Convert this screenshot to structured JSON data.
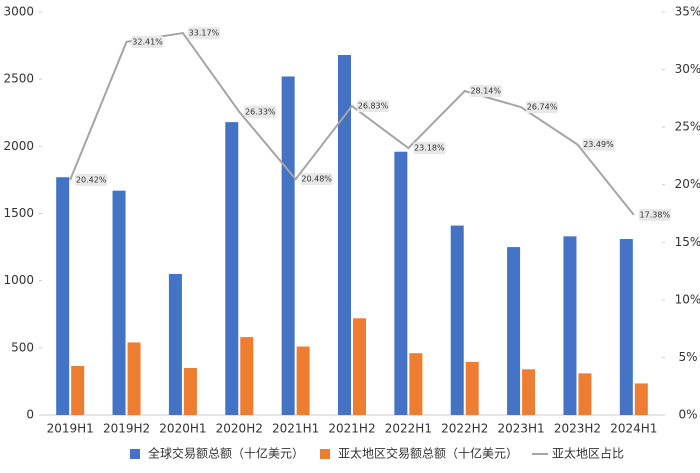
{
  "chart_data": {
    "type": "bar-line",
    "categories": [
      "2019H1",
      "2019H2",
      "2020H1",
      "2020H2",
      "2021H1",
      "2021H2",
      "2022H1",
      "2022H2",
      "2023H1",
      "2023H2",
      "2024H1"
    ],
    "series": [
      {
        "name": "全球交易额总额（十亿美元）",
        "color": "#4472c4",
        "values": [
          1770,
          1670,
          1050,
          2180,
          2520,
          2680,
          1960,
          1410,
          1250,
          1330,
          1310
        ]
      },
      {
        "name": "亚太地区交易额总额（十亿美元）",
        "color": "#ed7d31",
        "values": [
          365,
          540,
          350,
          580,
          510,
          720,
          460,
          395,
          340,
          310,
          235
        ]
      },
      {
        "name": "亚太地区占比",
        "color": "#a5a5a5",
        "axis": "y2",
        "values": [
          20.42,
          32.41,
          33.17,
          26.33,
          20.48,
          26.83,
          23.18,
          28.14,
          26.74,
          23.49,
          17.38
        ],
        "value_labels": [
          "20.42%",
          "32.41%",
          "33.17%",
          "26.33%",
          "20.48%",
          "26.83%",
          "23.18%",
          "28.14%",
          "26.74%",
          "23.49%",
          "17.38%"
        ]
      }
    ],
    "ylim": [
      0,
      3000
    ],
    "yticks": [
      0,
      500,
      1000,
      1500,
      2000,
      2500,
      3000
    ],
    "y2lim": [
      0,
      35
    ],
    "y2ticks": [
      {
        "value": 0,
        "label": "0%"
      },
      {
        "value": 5,
        "label": "5%"
      },
      {
        "value": 10,
        "label": "10%"
      },
      {
        "value": 15,
        "label": "15%"
      },
      {
        "value": 20,
        "label": "20%"
      },
      {
        "value": 25,
        "label": "25%"
      },
      {
        "value": 30,
        "label": "30%"
      },
      {
        "value": 35,
        "label": "35%"
      }
    ],
    "legend": "bottom"
  }
}
